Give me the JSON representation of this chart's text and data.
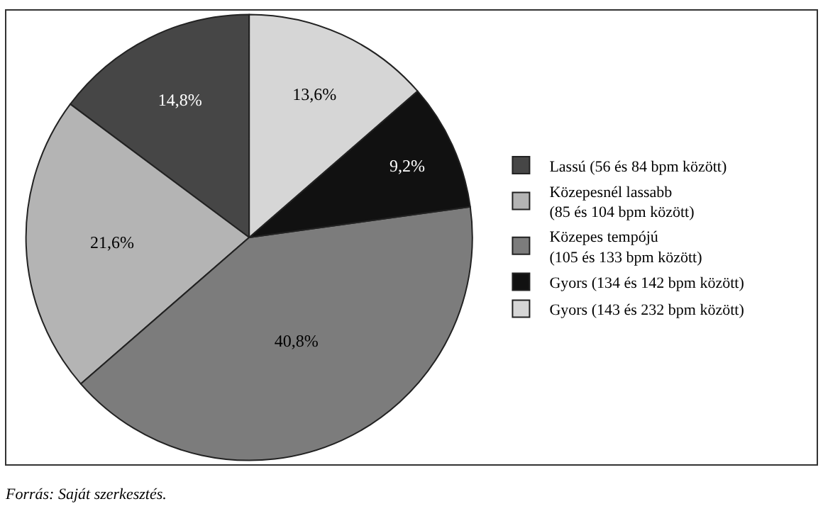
{
  "chart_data": {
    "type": "pie",
    "categories": [
      "Lassú (56 és 84 bpm között)",
      "Közepesnél lassabb\n(85 és 104 bpm között)",
      "Közepes tempójú\n(105 és 133 bpm között)",
      "Gyors (134 és 142 bpm között)",
      "Gyors (143 és 232 bpm között)"
    ],
    "values": [
      14.8,
      21.6,
      40.8,
      9.2,
      13.6
    ],
    "value_labels": [
      "14,8%",
      "21,6%",
      "40,8%",
      "9,2%",
      "13,6%"
    ],
    "colors": [
      "#464646",
      "#b4b4b4",
      "#7c7c7c",
      "#111111",
      "#d6d6d6"
    ],
    "legend": "right",
    "annotations": [
      "Forrás: Saját szerkesztés."
    ]
  }
}
